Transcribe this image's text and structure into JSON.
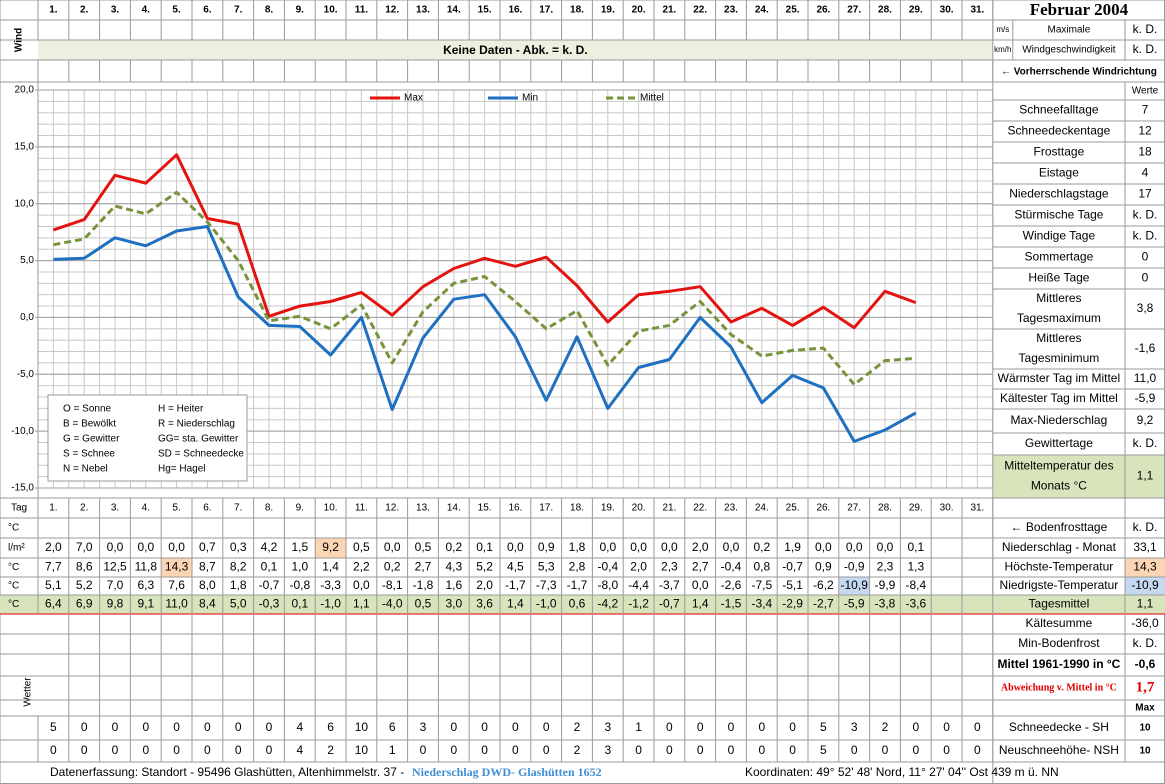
{
  "header": {
    "days": [
      "1.",
      "2.",
      "3.",
      "4.",
      "5.",
      "6.",
      "7.",
      "8.",
      "9.",
      "10.",
      "11.",
      "12.",
      "13.",
      "14.",
      "15.",
      "16.",
      "17.",
      "18.",
      "19.",
      "20.",
      "21.",
      "22.",
      "23.",
      "24.",
      "25.",
      "26.",
      "27.",
      "28.",
      "29.",
      "30.",
      "31."
    ],
    "month": "Februar 2004"
  },
  "wind": {
    "label": "Wind",
    "unit_ms": "m/s",
    "unit_kmh": "km/h",
    "max_label": [
      "Maximale",
      "Windgeschwindigkeit"
    ],
    "max_ms": "k. D.",
    "max_kmh": "k. D.",
    "no_data": "Keine Daten - Abk. = k. D.",
    "direction": "← Vorherrschende Windrichtung"
  },
  "chart_data": {
    "type": "line",
    "x": [
      1,
      2,
      3,
      4,
      5,
      6,
      7,
      8,
      9,
      10,
      11,
      12,
      13,
      14,
      15,
      16,
      17,
      18,
      19,
      20,
      21,
      22,
      23,
      24,
      25,
      26,
      27,
      28,
      29
    ],
    "xlim": [
      0.5,
      31.5
    ],
    "ylim": [
      -15,
      20
    ],
    "yticks": [
      {
        "value": -15,
        "label": "-15,0"
      },
      {
        "value": -10,
        "label": "-10,0"
      },
      {
        "value": -5,
        "label": "-5,0"
      },
      {
        "value": 0,
        "label": "0,0"
      },
      {
        "value": 5,
        "label": "5,0"
      },
      {
        "value": 10,
        "label": "10,0"
      },
      {
        "value": 15,
        "label": "15,0"
      },
      {
        "value": 20,
        "label": "20,0"
      }
    ],
    "grid": true,
    "legend": "top",
    "series": [
      {
        "name": "Max",
        "color": "#e3140f",
        "dash": false,
        "values": [
          7.7,
          8.6,
          12.5,
          11.8,
          14.3,
          8.7,
          8.2,
          0.1,
          1.0,
          1.4,
          2.2,
          0.2,
          2.7,
          4.3,
          5.2,
          4.5,
          5.3,
          2.8,
          -0.4,
          2.0,
          2.3,
          2.7,
          -0.4,
          0.8,
          -0.7,
          0.9,
          -0.9,
          2.3,
          1.3
        ]
      },
      {
        "name": "Min",
        "color": "#1f70c1",
        "dash": false,
        "values": [
          5.1,
          5.2,
          7.0,
          6.3,
          7.6,
          8.0,
          1.8,
          -0.7,
          -0.8,
          -3.3,
          0.0,
          -8.1,
          -1.8,
          1.6,
          2.0,
          -1.7,
          -7.3,
          -1.7,
          -8.0,
          -4.4,
          -3.7,
          0.0,
          -2.6,
          -7.5,
          -5.1,
          -6.2,
          -10.9,
          -9.9,
          -8.4
        ]
      },
      {
        "name": "Mittel",
        "color": "#77933c",
        "dash": true,
        "values": [
          6.4,
          6.9,
          9.8,
          9.1,
          11.0,
          8.4,
          5.0,
          -0.3,
          0.1,
          -1.0,
          1.1,
          -4.0,
          0.5,
          3.0,
          3.6,
          1.4,
          -1.0,
          0.6,
          -4.2,
          -1.2,
          -0.7,
          1.4,
          -1.5,
          -3.4,
          -2.9,
          -2.7,
          -5.9,
          -3.8,
          -3.6
        ]
      }
    ],
    "annotations": [
      [
        "O = Sonne",
        "B = Bewölkt",
        "G = Gewitter",
        "S = Schnee",
        "N = Nebel"
      ],
      [
        "H = Heiter",
        "R = Niederschlag",
        "GG= sta. Gewitter",
        "SD = Schneedecke",
        "Hg= Hagel"
      ]
    ]
  },
  "stats": {
    "header": "Werte",
    "rows": [
      {
        "label": [
          "Schneefalltage"
        ],
        "value": "7"
      },
      {
        "label": [
          "Schneedeckentage"
        ],
        "value": "12"
      },
      {
        "label": [
          "Frosttage"
        ],
        "value": "18"
      },
      {
        "label": [
          "Eistage"
        ],
        "value": "4"
      },
      {
        "label": [
          "Niederschlagstage"
        ],
        "value": "17"
      },
      {
        "label": [
          "Stürmische Tage"
        ],
        "value": "k. D."
      },
      {
        "label": [
          "Windige Tage"
        ],
        "value": "k. D."
      },
      {
        "label": [
          "Sommertage"
        ],
        "value": "0"
      },
      {
        "label": [
          "Heiße Tage"
        ],
        "value": "0"
      },
      {
        "label": [
          "Mittleres",
          "Tagesmaximum"
        ],
        "value": "3,8"
      },
      {
        "label": [
          "Mittleres",
          "Tagesminimum"
        ],
        "value": "-1,6"
      },
      {
        "label": [
          "Wärmster Tag im Mittel"
        ],
        "value": "11,0"
      },
      {
        "label": [
          "Kältester Tag im Mittel"
        ],
        "value": "-5,9"
      },
      {
        "label": [
          "Max-Niederschlag"
        ],
        "value": "9,2"
      },
      {
        "label": [
          "Gewittertage"
        ],
        "value": "k. D."
      },
      {
        "label": [
          "Mitteltemperatur des",
          "Monats °C"
        ],
        "value": "1,1"
      }
    ]
  },
  "table": {
    "tag": "Tag",
    "unit": "°C",
    "frost_label": "← Bodenfrosttage",
    "frost_value": "k. D.",
    "rows": [
      {
        "unit": "l/m²",
        "label": "Niederschlag - Monat",
        "total": "33,1",
        "highlight": {
          "index": 9,
          "color": "#fcd5b4"
        },
        "values": [
          "2,0",
          "7,0",
          "0,0",
          "0,0",
          "0,0",
          "0,7",
          "0,3",
          "4,2",
          "1,5",
          "9,2",
          "0,5",
          "0,0",
          "0,5",
          "0,2",
          "0,1",
          "0,0",
          "0,9",
          "1,8",
          "0,0",
          "0,0",
          "0,0",
          "2,0",
          "0,0",
          "0,2",
          "1,9",
          "0,0",
          "0,0",
          "0,0",
          "0,1"
        ]
      },
      {
        "unit": "°C",
        "label": "Höchste-Temperatur",
        "total": "14,3",
        "total_color": "#fcd5b4",
        "highlight": {
          "index": 4,
          "color": "#fcd5b4"
        },
        "values": [
          "7,7",
          "8,6",
          "12,5",
          "11,8",
          "14,3",
          "8,7",
          "8,2",
          "0,1",
          "1,0",
          "1,4",
          "2,2",
          "0,2",
          "2,7",
          "4,3",
          "5,2",
          "4,5",
          "5,3",
          "2,8",
          "-0,4",
          "2,0",
          "2,3",
          "2,7",
          "-0,4",
          "0,8",
          "-0,7",
          "0,9",
          "-0,9",
          "2,3",
          "1,3"
        ]
      },
      {
        "unit": "°C",
        "label": "Niedrigste-Temperatur",
        "total": "-10,9",
        "total_color": "#c5d9f1",
        "highlight": {
          "index": 26,
          "color": "#c5d9f1"
        },
        "values": [
          "5,1",
          "5,2",
          "7,0",
          "6,3",
          "7,6",
          "8,0",
          "1,8",
          "-0,7",
          "-0,8",
          "-3,3",
          "0,0",
          "-8,1",
          "-1,8",
          "1,6",
          "2,0",
          "-1,7",
          "-7,3",
          "-1,7",
          "-8,0",
          "-4,4",
          "-3,7",
          "0,0",
          "-2,6",
          "-7,5",
          "-5,1",
          "-6,2",
          "-10,9",
          "-9,9",
          "-8,4"
        ]
      },
      {
        "unit": "°C",
        "label": "Tagesmittel",
        "total": "1,1",
        "row_color": "#d8e4bc",
        "values": [
          "6,4",
          "6,9",
          "9,8",
          "9,1",
          "11,0",
          "8,4",
          "5,0",
          "-0,3",
          "0,1",
          "-1,0",
          "1,1",
          "-4,0",
          "0,5",
          "3,0",
          "3,6",
          "1,4",
          "-1,0",
          "0,6",
          "-4,2",
          "-1,2",
          "-0,7",
          "1,4",
          "-1,5",
          "-3,4",
          "-2,9",
          "-2,7",
          "-5,9",
          "-3,8",
          "-3,6"
        ]
      }
    ],
    "extra": [
      {
        "label": "Kältesumme",
        "value": "-36,0"
      },
      {
        "label": "Min-Bodenfrost",
        "value": "k. D."
      },
      {
        "label": "Mittel 1961-1990 in °C",
        "value": "-0,6"
      },
      {
        "label": "Abweichung v. Mittel in °C",
        "value": "1,7"
      }
    ]
  },
  "weather": {
    "label": "Wetter"
  },
  "snow": {
    "max": "Max",
    "rows": [
      {
        "label": "Schneedecke -  SH",
        "max": "10",
        "values": [
          "5",
          "0",
          "0",
          "0",
          "0",
          "0",
          "0",
          "0",
          "4",
          "6",
          "10",
          "6",
          "3",
          "0",
          "0",
          "0",
          "0",
          "2",
          "3",
          "1",
          "0",
          "0",
          "0",
          "0",
          "0",
          "5",
          "3",
          "2",
          "0",
          "0",
          "0"
        ]
      },
      {
        "label": "Neuschneehöhe- NSH",
        "max": "10",
        "values": [
          "0",
          "0",
          "0",
          "0",
          "0",
          "0",
          "0",
          "0",
          "4",
          "2",
          "10",
          "1",
          "0",
          "0",
          "0",
          "0",
          "0",
          "2",
          "3",
          "0",
          "0",
          "0",
          "0",
          "0",
          "0",
          "5",
          "0",
          "0",
          "0",
          "0",
          "0"
        ]
      }
    ]
  },
  "footer": {
    "left": "Datenerfassung:  Standort -  95496  Glashütten, Altenhimmelstr. 37 -",
    "station": "Niederschlag DWD- Glashütten 1652",
    "right": "Koordinaten:  49° 52' 48' Nord,   11° 27' 04'' Ost   439 m ü. NN"
  }
}
